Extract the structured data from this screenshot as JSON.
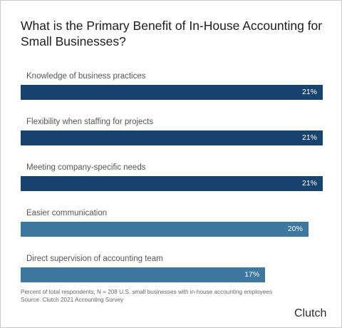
{
  "colors": {
    "dark_bar": "#17446e",
    "light_bar": "#3e77a0"
  },
  "chart_data": {
    "type": "bar",
    "orientation": "horizontal",
    "title": "What is the Primary Benefit of In-House Accounting for Small Businesses?",
    "categories": [
      "Knowledge of business practices",
      "Flexibility when staffing for projects",
      "Meeting company-specific needs",
      "Easier communication",
      "Direct supervision of accounting team"
    ],
    "values": [
      21,
      21,
      21,
      20,
      17
    ],
    "value_labels": [
      "21%",
      "21%",
      "21%",
      "20%",
      "17%"
    ],
    "xlim": [
      0,
      21
    ],
    "grid": false,
    "legend": "none"
  },
  "footnote": {
    "line1": "Percent of total respondents; N = 208 U.S. small businesses with in-house accounting employees",
    "line2": "Source: Clutch 2021 Accounting Survey"
  },
  "brand": "Clutch"
}
